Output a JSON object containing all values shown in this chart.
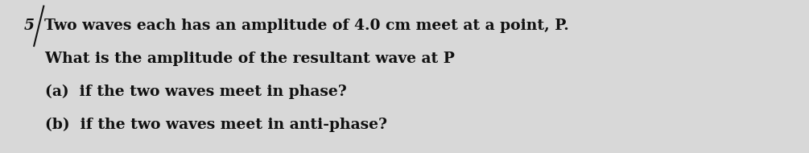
{
  "background_color": "#d8d8d8",
  "line1": "Two waves each has an amplitude of 4.0 cm meet at a point, P.",
  "line2": "    What is the amplitude of the resultant wave at P",
  "line3a": "    (a)  if the two waves meet in phase?",
  "line3b": "    (b)  if the two waves meet in anti-phase?",
  "number_label": "5",
  "font_size": 13.5,
  "text_color": "#111111",
  "fig_width": 10.05,
  "fig_height": 1.9,
  "dpi": 100
}
